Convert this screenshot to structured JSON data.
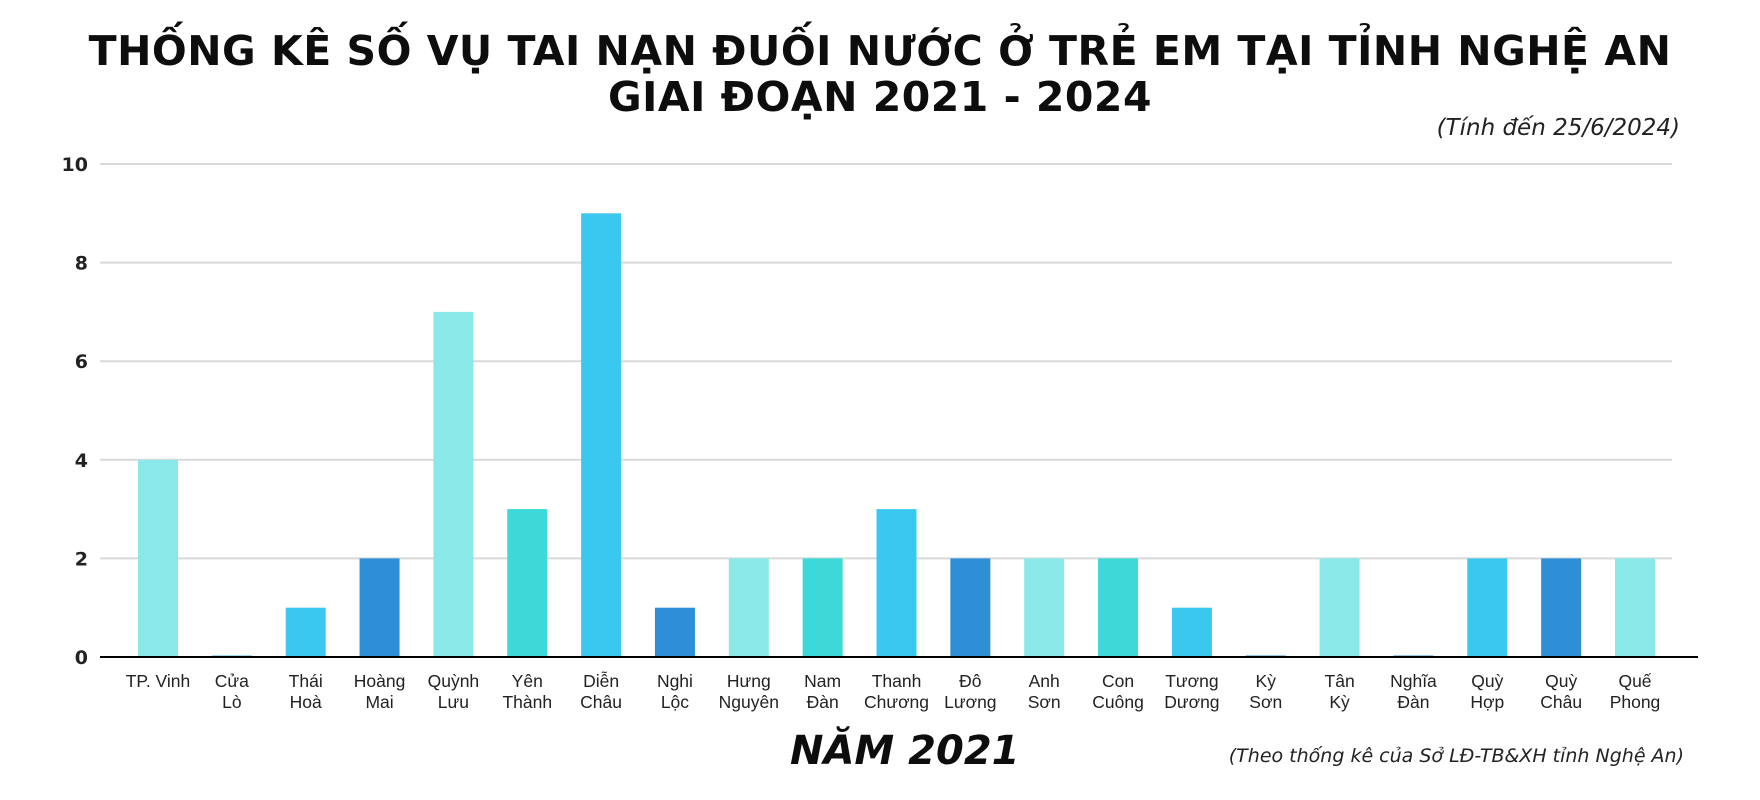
{
  "title_line1": "THỐNG KÊ SỐ VỤ TAI NẠN ĐUỐI NƯỚC Ở TRẺ EM TẠI TỈNH NGHỆ AN",
  "title_line2": "GIAI ĐOẠN 2021 - 2024",
  "subtitle": "(Tính đến 25/6/2024)",
  "year_label": "NĂM 2021",
  "source": "(Theo thống kê của Sở LĐ-TB&XH tỉnh Nghệ An)",
  "chart_data": {
    "type": "bar",
    "title": "THỐNG KÊ SỐ VỤ TAI NẠN ĐUỐI NƯỚC Ở TRẺ EM TẠI TỈNH NGHỆ AN GIAI ĐOẠN 2021 - 2024",
    "xlabel": "NĂM 2021",
    "ylabel": "",
    "ylim": [
      0,
      10
    ],
    "yticks": [
      "0",
      "2",
      "4",
      "6",
      "8",
      "10"
    ],
    "grid": true,
    "legend": "none",
    "categories": [
      [
        "TP. Vinh"
      ],
      [
        "Cửa",
        "Lò"
      ],
      [
        "Thái",
        "Hoà"
      ],
      [
        "Hoàng",
        "Mai"
      ],
      [
        "Quỳnh",
        "Lưu"
      ],
      [
        "Yên",
        "Thành"
      ],
      [
        "Diễn",
        "Châu"
      ],
      [
        "Nghi",
        "Lộc"
      ],
      [
        "Hưng",
        "Nguyên"
      ],
      [
        "Nam",
        "Đàn"
      ],
      [
        "Thanh",
        "Chương"
      ],
      [
        "Đô",
        "Lương"
      ],
      [
        "Anh",
        "Sơn"
      ],
      [
        "Con",
        "Cuông"
      ],
      [
        "Tương",
        "Dương"
      ],
      [
        "Kỳ",
        "Sơn"
      ],
      [
        "Tân",
        "Kỳ"
      ],
      [
        "Nghĩa",
        "Đàn"
      ],
      [
        "Quỳ",
        "Hợp"
      ],
      [
        "Quỳ",
        "Châu"
      ],
      [
        "Quế",
        "Phong"
      ]
    ],
    "values": [
      4,
      0,
      1,
      2,
      7,
      3,
      9,
      1,
      2,
      2,
      3,
      2,
      2,
      2,
      1,
      0,
      2,
      0,
      2,
      2,
      2
    ],
    "colors": [
      "#8ae8e8",
      "#3bb7e8",
      "#3bc8f0",
      "#2e8fd6",
      "#8ae8e8",
      "#3dd8d8",
      "#3bc8f0",
      "#2e8fd6",
      "#8ae8e8",
      "#3dd8d8",
      "#3bc8f0",
      "#2e8fd6",
      "#8ae8e8",
      "#3dd8d8",
      "#3bc8f0",
      "#2e8fd6",
      "#8ae8e8",
      "#2e8fd6",
      "#3bc8f0",
      "#2e8fd6",
      "#8ae8e8"
    ],
    "gridline_color": "#d9d9d9",
    "axis_color": "#000000"
  }
}
